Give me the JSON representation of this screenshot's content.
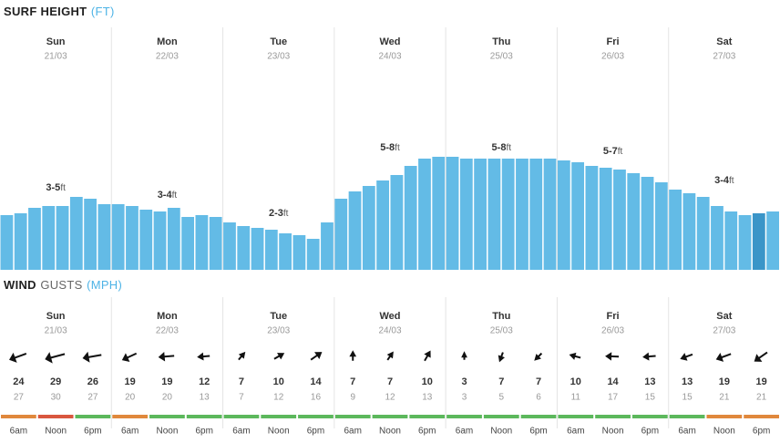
{
  "surf": {
    "title": "SURF HEIGHT",
    "unit": "(FT)",
    "highlight": {
      "day": 6,
      "index": 6
    },
    "days": [
      {
        "day": "Sun",
        "date": "21/03",
        "range": "3-5",
        "range_unit": "ft",
        "heights": [
          3.0,
          3.1,
          3.4,
          3.5,
          3.5,
          4.0,
          3.9,
          3.6
        ]
      },
      {
        "day": "Mon",
        "date": "22/03",
        "range": "3-4",
        "range_unit": "ft",
        "heights": [
          3.6,
          3.5,
          3.3,
          3.2,
          3.4,
          2.9,
          3.0,
          2.9
        ]
      },
      {
        "day": "Tue",
        "date": "23/03",
        "range": "2-3",
        "range_unit": "ft",
        "heights": [
          2.6,
          2.4,
          2.3,
          2.2,
          2.0,
          1.9,
          1.7,
          2.6
        ]
      },
      {
        "day": "Wed",
        "date": "24/03",
        "range": "5-8",
        "range_unit": "ft",
        "heights": [
          3.9,
          4.3,
          4.6,
          4.9,
          5.2,
          5.7,
          6.1,
          6.2
        ]
      },
      {
        "day": "Thu",
        "date": "25/03",
        "range": "5-8",
        "range_unit": "ft",
        "heights": [
          6.2,
          6.1,
          6.1,
          6.1,
          6.1,
          6.1,
          6.1,
          6.1
        ]
      },
      {
        "day": "Fri",
        "date": "26/03",
        "range": "5-7",
        "range_unit": "ft",
        "heights": [
          6.0,
          5.9,
          5.7,
          5.6,
          5.5,
          5.3,
          5.1,
          4.8
        ]
      },
      {
        "day": "Sat",
        "date": "27/03",
        "range": "3-4",
        "range_unit": "ft",
        "heights": [
          4.4,
          4.2,
          4.0,
          3.5,
          3.2,
          3.0,
          3.1,
          3.2
        ]
      }
    ]
  },
  "wind": {
    "title": "WIND",
    "subtitle": "GUSTS",
    "unit": "(MPH)",
    "days": [
      {
        "day": "Sun",
        "date": "21/03",
        "slots": [
          {
            "time": "6am",
            "direction": 250,
            "speed": 24,
            "gust": 27,
            "color": "#e0883c"
          },
          {
            "time": "Noon",
            "direction": 255,
            "speed": 29,
            "gust": 30,
            "color": "#d9573f"
          },
          {
            "time": "6pm",
            "direction": 260,
            "speed": 26,
            "gust": 27,
            "color": "#5cb85c"
          }
        ]
      },
      {
        "day": "Mon",
        "date": "22/03",
        "slots": [
          {
            "time": "6am",
            "direction": 245,
            "speed": 19,
            "gust": 20,
            "color": "#e0883c"
          },
          {
            "time": "Noon",
            "direction": 265,
            "speed": 19,
            "gust": 20,
            "color": "#5cb85c"
          },
          {
            "time": "6pm",
            "direction": 265,
            "speed": 12,
            "gust": 13,
            "color": "#5cb85c"
          }
        ]
      },
      {
        "day": "Tue",
        "date": "23/03",
        "slots": [
          {
            "time": "6am",
            "direction": 40,
            "speed": 7,
            "gust": 7,
            "color": "#5cb85c"
          },
          {
            "time": "Noon",
            "direction": 60,
            "speed": 10,
            "gust": 12,
            "color": "#5cb85c"
          },
          {
            "time": "6pm",
            "direction": 55,
            "speed": 14,
            "gust": 16,
            "color": "#5cb85c"
          }
        ]
      },
      {
        "day": "Wed",
        "date": "24/03",
        "slots": [
          {
            "time": "6am",
            "direction": 0,
            "speed": 7,
            "gust": 9,
            "color": "#5cb85c"
          },
          {
            "time": "Noon",
            "direction": 35,
            "speed": 7,
            "gust": 12,
            "color": "#5cb85c"
          },
          {
            "time": "6pm",
            "direction": 30,
            "speed": 10,
            "gust": 13,
            "color": "#5cb85c"
          }
        ]
      },
      {
        "day": "Thu",
        "date": "25/03",
        "slots": [
          {
            "time": "6am",
            "direction": 0,
            "speed": 3,
            "gust": 3,
            "color": "#5cb85c"
          },
          {
            "time": "Noon",
            "direction": 200,
            "speed": 7,
            "gust": 5,
            "color": "#5cb85c"
          },
          {
            "time": "6pm",
            "direction": 225,
            "speed": 7,
            "gust": 6,
            "color": "#5cb85c"
          }
        ]
      },
      {
        "day": "Fri",
        "date": "26/03",
        "slots": [
          {
            "time": "6am",
            "direction": 285,
            "speed": 10,
            "gust": 11,
            "color": "#5cb85c"
          },
          {
            "time": "Noon",
            "direction": 272,
            "speed": 14,
            "gust": 17,
            "color": "#5cb85c"
          },
          {
            "time": "6pm",
            "direction": 265,
            "speed": 13,
            "gust": 15,
            "color": "#5cb85c"
          }
        ]
      },
      {
        "day": "Sat",
        "date": "27/03",
        "slots": [
          {
            "time": "6am",
            "direction": 250,
            "speed": 13,
            "gust": 15,
            "color": "#5cb85c"
          },
          {
            "time": "Noon",
            "direction": 250,
            "speed": 19,
            "gust": 21,
            "color": "#e0883c"
          },
          {
            "time": "6pm",
            "direction": 235,
            "speed": 19,
            "gust": 21,
            "color": "#e0883c"
          }
        ]
      }
    ]
  }
}
